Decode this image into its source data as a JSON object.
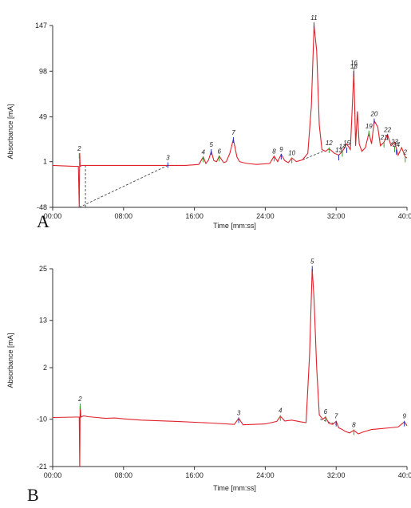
{
  "chart_data": [
    {
      "panel_label": "A",
      "type": "line",
      "xlabel": "Time [mm:ss]",
      "ylabel": "Absorbance [mA]",
      "xlim": [
        0,
        40
      ],
      "ylim": [
        -48,
        147
      ],
      "x_ticks": [
        "00:00",
        "08:00",
        "16:00",
        "24:00",
        "32:00",
        "40:00"
      ],
      "x_tick_values": [
        0,
        8,
        16,
        24,
        32,
        40
      ],
      "y_ticks": [
        "147",
        "98",
        "49",
        "1",
        "-48"
      ],
      "y_tick_values": [
        147,
        98,
        49,
        1,
        -48
      ],
      "grid": false,
      "series": [
        {
          "x": [
            0,
            2.4,
            2.9,
            3.0,
            3.05,
            3.1,
            3.3,
            3.7,
            6,
            10,
            13,
            15,
            16.5,
            17.0,
            17.3,
            17.6,
            17.9,
            18.2,
            18.5,
            18.8,
            19.3,
            19.6,
            20.0,
            20.4,
            20.8,
            21.1,
            21.5,
            22,
            23,
            24.5,
            25.0,
            25.4,
            25.8,
            26.2,
            26.6,
            27.0,
            27.5,
            28.2,
            28.8,
            29.2,
            29.5,
            29.8,
            30.1,
            30.4,
            30.8,
            31.2,
            31.8,
            32.3,
            32.7,
            33.2,
            33.6,
            34.0,
            34.2,
            34.4,
            34.6,
            34.9,
            35.3,
            35.7,
            36.0,
            36.3,
            36.7,
            37.0,
            37.4,
            37.8,
            38.2,
            38.6,
            39.0,
            39.4,
            39.8,
            40.0
          ],
          "y": [
            -3,
            -4,
            -4,
            -48,
            10,
            -4,
            -3,
            -3,
            -3,
            -3,
            -3,
            -3,
            -2,
            6,
            -1,
            3,
            12,
            2,
            1,
            7,
            0,
            1,
            10,
            25,
            6,
            1,
            0,
            -1,
            -2,
            -1,
            7,
            1,
            9,
            2,
            0,
            5,
            1,
            3,
            10,
            60,
            147,
            120,
            40,
            14,
            12,
            15,
            10,
            8,
            12,
            20,
            14,
            98,
            18,
            55,
            20,
            12,
            16,
            32,
            20,
            45,
            38,
            18,
            22,
            30,
            18,
            22,
            8,
            16,
            6,
            5
          ]
        }
      ],
      "baselines": [
        {
          "x": [
            3.0,
            13.0
          ],
          "y": [
            -48,
            -3
          ]
        },
        {
          "x": [
            3.7,
            3.7
          ],
          "y": [
            -48,
            -3
          ]
        },
        {
          "x": [
            28.2,
            30.5
          ],
          "y": [
            3,
            12
          ]
        }
      ],
      "peak_labels": [
        {
          "label": "2",
          "x": 3.0,
          "y": 12
        },
        {
          "label": "3",
          "x": 13.0,
          "y": 2
        },
        {
          "label": "4",
          "x": 17.0,
          "y": 8
        },
        {
          "label": "5",
          "x": 17.9,
          "y": 16
        },
        {
          "label": "6",
          "x": 18.8,
          "y": 9
        },
        {
          "label": "7",
          "x": 20.4,
          "y": 29
        },
        {
          "label": "8",
          "x": 25.0,
          "y": 9
        },
        {
          "label": "9",
          "x": 25.8,
          "y": 11
        },
        {
          "label": "10",
          "x": 27.0,
          "y": 7
        },
        {
          "label": "11",
          "x": 29.5,
          "y": 152
        },
        {
          "label": "12",
          "x": 31.2,
          "y": 18
        },
        {
          "label": "13",
          "x": 32.3,
          "y": 10
        },
        {
          "label": "14",
          "x": 32.7,
          "y": 14
        },
        {
          "label": "15",
          "x": 33.2,
          "y": 18
        },
        {
          "label": "16",
          "x": 34.0,
          "y": 104
        },
        {
          "label": "18",
          "x": 34.0,
          "y": 100
        },
        {
          "label": "19",
          "x": 35.7,
          "y": 36
        },
        {
          "label": "20",
          "x": 36.3,
          "y": 49
        },
        {
          "label": "21",
          "x": 37.4,
          "y": 24
        },
        {
          "label": "22",
          "x": 37.8,
          "y": 32
        },
        {
          "label": "23",
          "x": 38.6,
          "y": 19
        },
        {
          "label": "24",
          "x": 38.8,
          "y": 16
        },
        {
          "label": "2",
          "x": 39.8,
          "y": 8
        }
      ]
    },
    {
      "panel_label": "B",
      "type": "line",
      "xlabel": "Time [mm:ss]",
      "ylabel": "Absorbance [mA]",
      "xlim": [
        0,
        40
      ],
      "ylim": [
        -21,
        25
      ],
      "x_ticks": [
        "00:00",
        "08:00",
        "16:00",
        "24:00",
        "32:00",
        "40:00"
      ],
      "x_tick_values": [
        0,
        8,
        16,
        24,
        32,
        40
      ],
      "y_ticks": [
        "25",
        "13",
        "2",
        "-10",
        "-21"
      ],
      "y_tick_values": [
        25,
        13,
        2,
        -10,
        -21
      ],
      "grid": false,
      "series": [
        {
          "x": [
            0,
            2.5,
            3.0,
            3.05,
            3.1,
            3.2,
            3.5,
            4.0,
            5,
            6,
            7,
            8,
            10,
            14,
            18,
            20.5,
            21.0,
            21.5,
            24,
            25.3,
            25.7,
            26.2,
            27,
            28,
            28.6,
            29.0,
            29.3,
            29.5,
            29.8,
            30.1,
            30.5,
            30.8,
            31.2,
            31.6,
            32.0,
            32.3,
            32.7,
            33.0,
            33.5,
            34.0,
            34.5,
            35,
            36,
            37,
            38,
            39,
            39.7,
            40.0
          ],
          "y": [
            -9.6,
            -9.5,
            -9.5,
            -21,
            -7,
            -9.5,
            -9.2,
            -9.4,
            -9.6,
            -9.8,
            -9.7,
            -9.9,
            -10.2,
            -10.5,
            -10.9,
            -11.2,
            -9.8,
            -11.3,
            -11.1,
            -10.5,
            -9.3,
            -10.4,
            -10.2,
            -10.6,
            -10.8,
            5,
            25,
            18,
            2,
            -9,
            -10,
            -9.5,
            -11,
            -11.2,
            -10.5,
            -12,
            -12.4,
            -12.8,
            -13.2,
            -12.6,
            -13.4,
            -13,
            -12.4,
            -12.2,
            -12.0,
            -11.8,
            -10.6,
            -11.5
          ]
        }
      ],
      "baselines": [
        {
          "x": [
            30.2,
            32.0
          ],
          "y": [
            -10,
            -11.2
          ]
        }
      ],
      "peak_labels": [
        {
          "label": "2",
          "x": 3.1,
          "y": -6
        },
        {
          "label": "3",
          "x": 21.0,
          "y": -9.2
        },
        {
          "label": "4",
          "x": 25.7,
          "y": -8.7
        },
        {
          "label": "5",
          "x": 29.3,
          "y": 26
        },
        {
          "label": "6",
          "x": 30.8,
          "y": -8.9
        },
        {
          "label": "7",
          "x": 32.0,
          "y": -10
        },
        {
          "label": "8",
          "x": 34.0,
          "y": -12
        },
        {
          "label": "9",
          "x": 39.7,
          "y": -10
        }
      ]
    }
  ]
}
